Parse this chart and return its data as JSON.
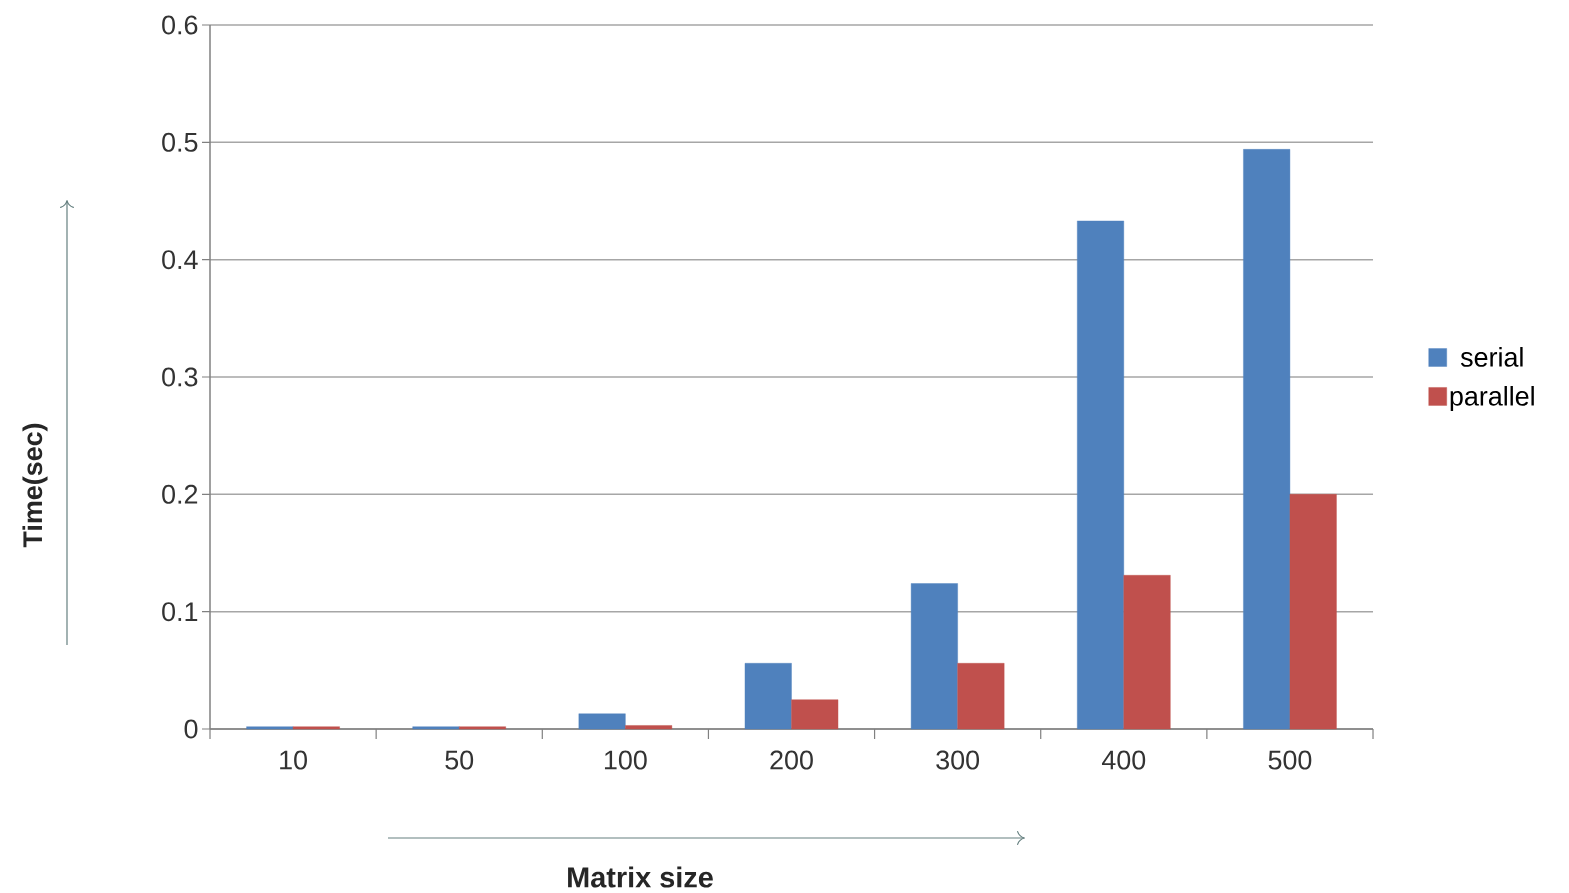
{
  "chart_data": {
    "type": "bar",
    "xlabel": "Matrix size",
    "ylabel": "Time(sec)",
    "categories": [
      "10",
      "50",
      "100",
      "200",
      "300",
      "400",
      "500"
    ],
    "series": [
      {
        "name": "serial",
        "color": "#4f81bd",
        "values": [
          0.002,
          0.002,
          0.013,
          0.056,
          0.124,
          0.433,
          0.494
        ]
      },
      {
        "name": "parallel",
        "color": "#c0504d",
        "values": [
          0.002,
          0.002,
          0.003,
          0.025,
          0.056,
          0.131,
          0.2
        ]
      }
    ],
    "ylim": [
      0,
      0.6
    ],
    "yticks": [
      0,
      0.1,
      0.2,
      0.3,
      0.4,
      0.5,
      0.6
    ],
    "grid": "y",
    "legend": "right"
  }
}
